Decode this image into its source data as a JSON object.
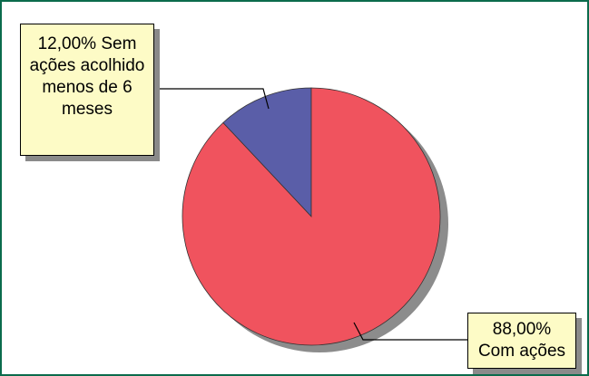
{
  "chart_data": {
    "type": "pie",
    "categories": [
      "Sem ações acolhido menos de 6 meses",
      "Com ações"
    ],
    "values": [
      12,
      88
    ],
    "value_labels": [
      "12,00%",
      "88,00%"
    ],
    "colors": [
      "#5a5ea8",
      "#f0535e"
    ]
  }
}
